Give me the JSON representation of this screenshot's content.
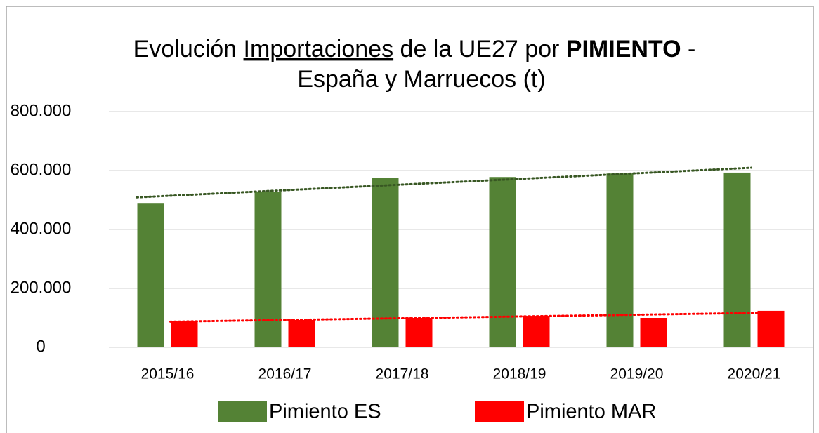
{
  "chart_data": {
    "type": "bar",
    "title": {
      "line1": [
        "Evolución ",
        "Importaciones",
        " de la UE27 por ",
        "PIMIENTO",
        " -"
      ],
      "line2": "España y Marruecos (t)"
    },
    "categories": [
      "2015/16",
      "2016/17",
      "2017/18",
      "2018/19",
      "2019/20",
      "2020/21"
    ],
    "series": [
      {
        "name": "Pimiento ES",
        "color": "#548235",
        "trend_color": "#385723",
        "values": [
          490000,
          528000,
          576000,
          578000,
          590000,
          593000
        ]
      },
      {
        "name": "Pimiento MAR",
        "color": "#ff0000",
        "trend_color": "#ff0000",
        "values": [
          88000,
          93000,
          100000,
          107000,
          100000,
          124000
        ]
      }
    ],
    "ylim": [
      0,
      800000
    ],
    "yticks": [
      0,
      {
        "value": 200000,
        "label": "200.000"
      },
      {
        "value": 400000,
        "label": "400.000"
      },
      {
        "value": 600000,
        "label": "600.000"
      },
      {
        "value": 800000,
        "label": "800.000"
      }
    ],
    "grid": true,
    "trendline": true,
    "legend": "bottom"
  }
}
